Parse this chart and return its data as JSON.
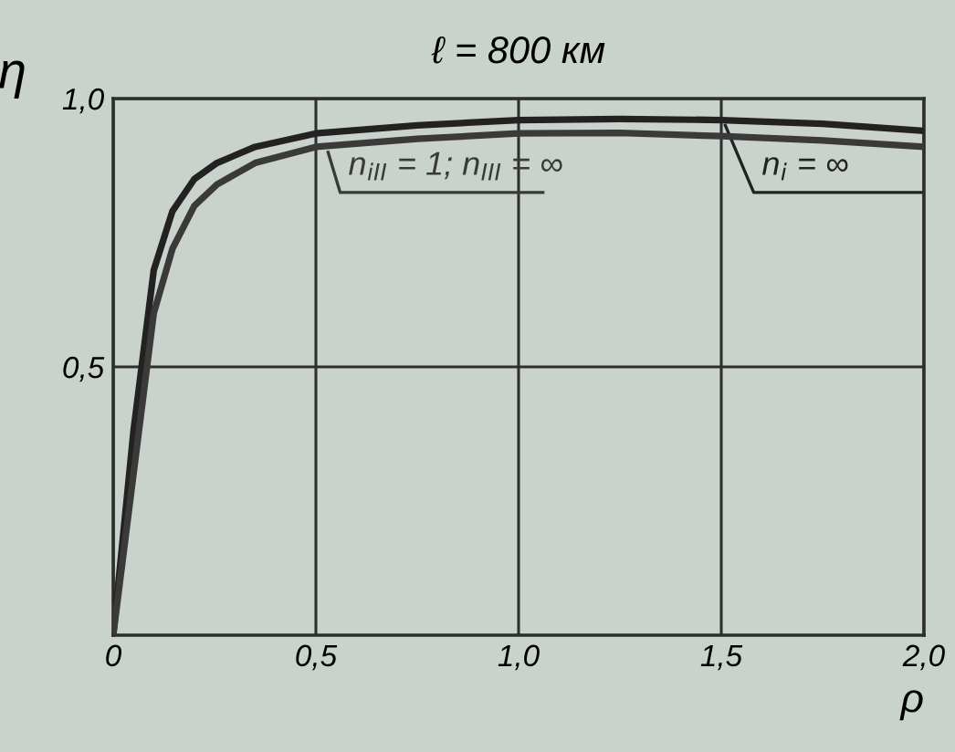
{
  "chart_data": {
    "type": "line",
    "title": "ℓ = 800 км",
    "xlabel": "ρ",
    "ylabel": "η",
    "x": [
      0,
      0.05,
      0.1,
      0.146,
      0.2,
      0.256,
      0.35,
      0.5,
      0.75,
      1.0,
      1.25,
      1.5,
      1.75,
      2.0
    ],
    "series": [
      {
        "name": "n$_{i}$ = ∞",
        "color": "#222222",
        "values": [
          0,
          0.38,
          0.68,
          0.79,
          0.85,
          0.88,
          0.91,
          0.935,
          0.95,
          0.96,
          0.962,
          0.96,
          0.953,
          0.94
        ]
      },
      {
        "name": "n$_{iII}$ = 1; n$_{III}$ = ∞",
        "color": "#3a3a3a",
        "values": [
          0,
          0.3,
          0.6,
          0.72,
          0.8,
          0.84,
          0.88,
          0.91,
          0.925,
          0.935,
          0.936,
          0.93,
          0.922,
          0.91
        ]
      }
    ],
    "xlim": [
      0,
      2.0
    ],
    "ylim": [
      0,
      1.0
    ],
    "xticks": [
      {
        "value": 0,
        "label": "0"
      },
      {
        "value": 0.5,
        "label": "0,5"
      },
      {
        "value": 1.0,
        "label": "1,0"
      },
      {
        "value": 1.5,
        "label": "1,5"
      },
      {
        "value": 2.0,
        "label": "2,0"
      }
    ],
    "yticks": [
      {
        "value": 0.5,
        "label": "0,5"
      },
      {
        "value": 1.0,
        "label": "1,0"
      }
    ],
    "grid": true,
    "legend": false,
    "marker": "none",
    "line_style": "solid"
  }
}
